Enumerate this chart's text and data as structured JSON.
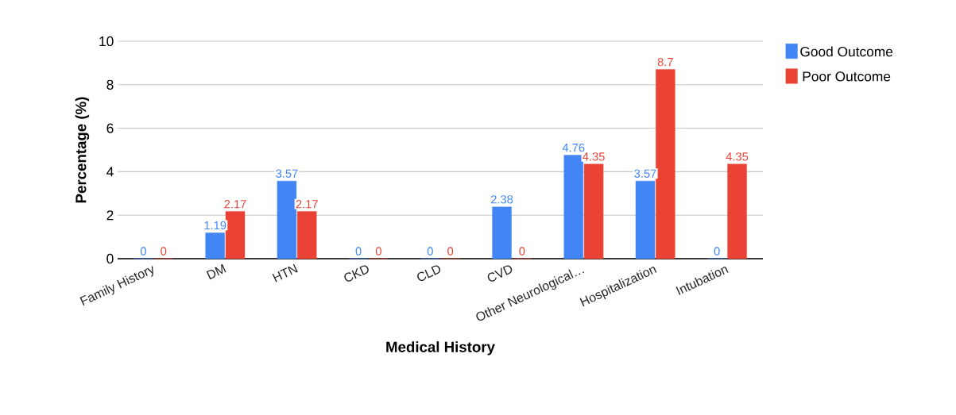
{
  "chart_data": {
    "type": "bar",
    "xlabel": "Medical History",
    "ylabel": "Percentage (%)",
    "categories": [
      "Family History",
      "DM",
      "HTN",
      "CKD",
      "CLD",
      "CVD",
      "Other Neurological…",
      "Hospitalization",
      "Intubation"
    ],
    "series": [
      {
        "name": "Good Outcome",
        "color": "#4285f4",
        "values": [
          0,
          1.19,
          3.57,
          0,
          0,
          2.38,
          4.76,
          3.57,
          0
        ]
      },
      {
        "name": "Poor Outcome",
        "color": "#ea4335",
        "values": [
          0,
          2.17,
          2.17,
          0,
          0,
          0,
          4.35,
          8.7,
          4.35
        ]
      }
    ],
    "ylim": [
      0,
      10
    ],
    "yticks": [
      0,
      2,
      4,
      6,
      8,
      10
    ],
    "grid": "y",
    "legend": "right",
    "data_labels": true
  }
}
